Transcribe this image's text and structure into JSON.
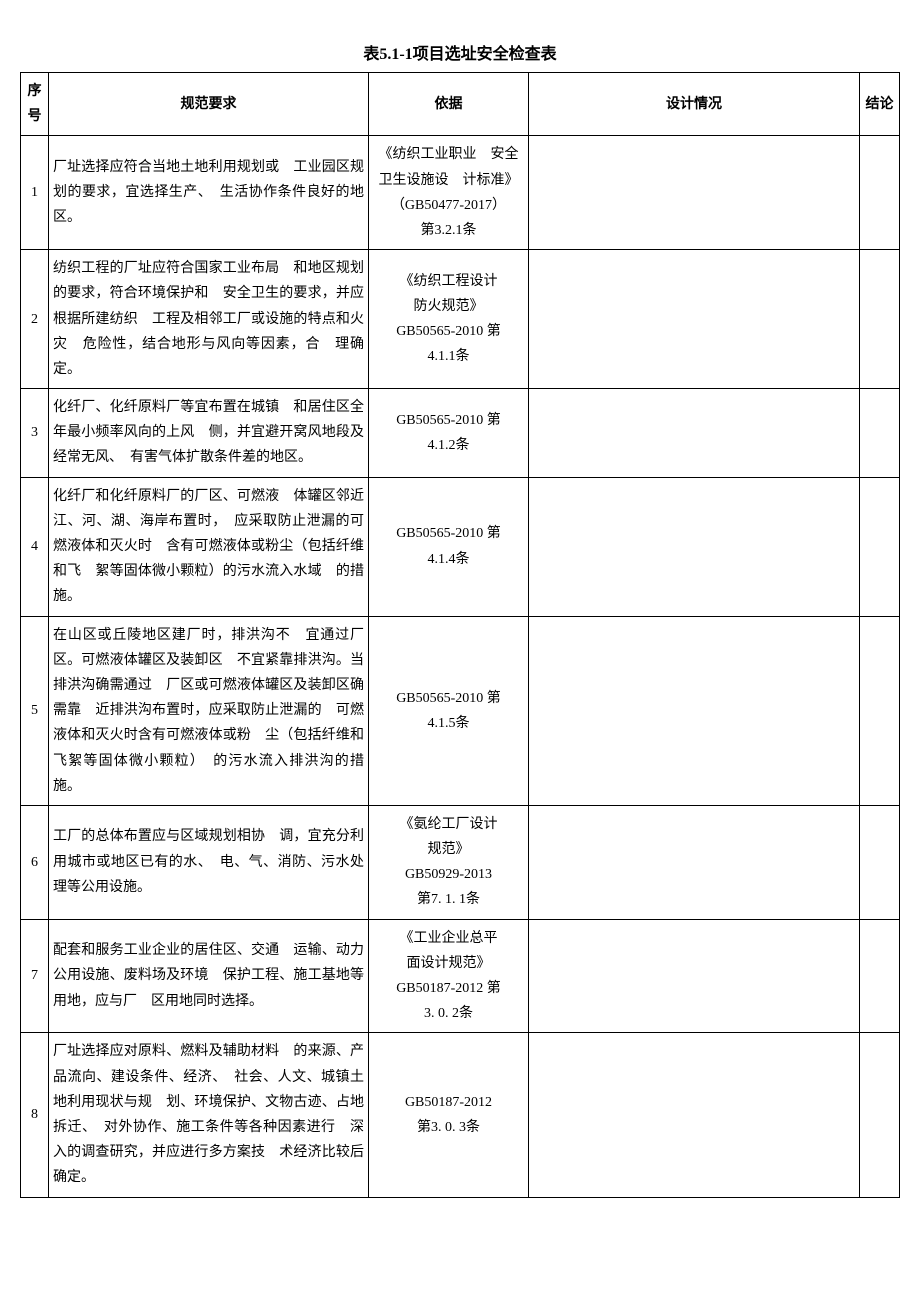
{
  "title": "表5.1-1项目选址安全检查表",
  "columns": {
    "seq": "序号",
    "req": "规范要求",
    "basis": "依据",
    "design": "设计情况",
    "result": "结论"
  },
  "rows": [
    {
      "seq": "1",
      "req": "厂址选择应符合当地土地利用规划或　工业园区规划的要求，宜选择生产、　生活协作条件良好的地区。",
      "basis": "《纺织工业职业　安全卫生设施设　计标准》\n（GB50477-2017）\n第3.2.1条",
      "design": "",
      "result": ""
    },
    {
      "seq": "2",
      "req": "纺织工程的厂址应符合国家工业布局　和地区规划的要求，符合环境保护和　安全卫生的要求，并应根据所建纺织　工程及相邻工厂或设施的特点和火灾　危险性，结合地形与风向等因素，合　理确定。",
      "basis": "《纺织工程设计\n防火规范》\nGB50565-2010 第\n4.1.1条",
      "design": "",
      "result": ""
    },
    {
      "seq": "3",
      "req": "化纤厂、化纤原料厂等宜布置在城镇　和居住区全年最小频率风向的上风　侧，并宜避开窝风地段及经常无风、　有害气体扩散条件差的地区。",
      "basis": "GB50565-2010 第\n4.1.2条",
      "design": "",
      "result": ""
    },
    {
      "seq": "4",
      "req": "化纤厂和化纤原料厂的厂区、可燃液　体罐区邻近江、河、湖、海岸布置时，　应采取防止泄漏的可燃液体和灭火时　含有可燃液体或粉尘（包括纤维和飞　絮等固体微小颗粒）的污水流入水域　的措施。",
      "basis": "GB50565-2010 第\n4.1.4条",
      "design": "",
      "result": ""
    },
    {
      "seq": "5",
      "req": "在山区或丘陵地区建厂时，排洪沟不　宜通过厂区。可燃液体罐区及装卸区　不宜紧靠排洪沟。当排洪沟确需通过　厂区或可燃液体罐区及装卸区确需靠　近排洪沟布置时，应采取防止泄漏的　可燃液体和灭火时含有可燃液体或粉　尘（包括纤维和飞絮等固体微小颗粒）　的污水流入排洪沟的措施。",
      "basis": "GB50565-2010 第\n4.1.5条",
      "design": "",
      "result": ""
    },
    {
      "seq": "6",
      "req": "工厂的总体布置应与区域规划相协　调，宜充分利用城市或地区已有的水、　电、气、消防、污水处理等公用设施。",
      "basis": "《氨纶工厂设计\n规范》\nGB50929-2013\n第7. 1. 1条",
      "design": "",
      "result": ""
    },
    {
      "seq": "7",
      "req": "配套和服务工业企业的居住区、交通　运输、动力公用设施、废料场及环境　保护工程、施工基地等用地，应与厂　区用地同时选择。",
      "basis": "《工业企业总平\n面设计规范》\nGB50187-2012 第\n3. 0. 2条",
      "design": "",
      "result": ""
    },
    {
      "seq": "8",
      "req": "厂址选择应对原料、燃料及辅助材料　的来源、产品流向、建设条件、经济、　社会、人文、城镇土地利用现状与规　划、环境保护、文物古迹、占地拆迁、　对外协作、施工条件等各种因素进行　深入的调查研究，并应进行多方案技　术经济比较后确定。",
      "basis": "GB50187-2012\n第3. 0. 3条",
      "design": "",
      "result": ""
    }
  ]
}
